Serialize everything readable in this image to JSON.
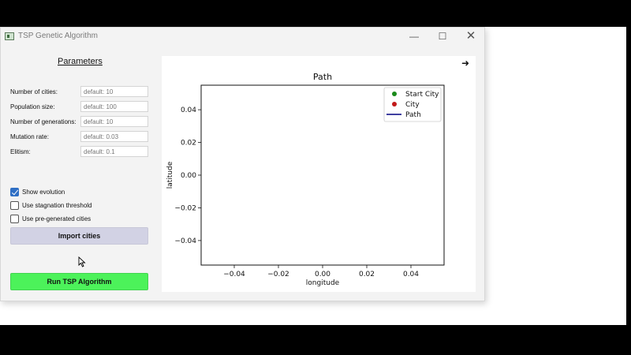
{
  "window": {
    "title": "TSP Genetic Algorithm",
    "controls": {
      "minimize": "—",
      "maximize": "☐",
      "close": "✕"
    }
  },
  "parameters": {
    "heading": "Parameters",
    "fields": [
      {
        "label": "Number of cities:",
        "placeholder": "default: 10",
        "value": ""
      },
      {
        "label": "Population size:",
        "placeholder": "default: 100",
        "value": ""
      },
      {
        "label": "Number of generations:",
        "placeholder": "default: 10",
        "value": ""
      },
      {
        "label": "Mutation rate:",
        "placeholder": "default: 0.03",
        "value": ""
      },
      {
        "label": "Elitism:",
        "placeholder": "default: 0.1",
        "value": ""
      }
    ],
    "options": [
      {
        "label": "Show evolution",
        "checked": true
      },
      {
        "label": "Use stagnation threshold",
        "checked": false
      },
      {
        "label": "Use pre-generated cities",
        "checked": false
      }
    ],
    "import_label": "Import cities",
    "run_label": "Run TSP Algorithm"
  },
  "plot_panel": {
    "arrow_icon": "right-arrow-icon",
    "arrow_glyph": "➜"
  },
  "colors": {
    "start_city": "#1a8a1a",
    "city": "#c21a1a",
    "path": "#000080",
    "run_button": "#4cf25a",
    "import_button": "#d2d2e4",
    "checkbox_checked": "#2f6fc4"
  },
  "chart_data": {
    "type": "scatter",
    "title": "Path",
    "xlabel": "longitude",
    "ylabel": "latitude",
    "xlim": [
      -0.055,
      0.055
    ],
    "ylim": [
      -0.055,
      0.055
    ],
    "xticks": [
      -0.04,
      -0.02,
      0.0,
      0.02,
      0.04
    ],
    "yticks": [
      -0.04,
      -0.02,
      0.0,
      0.02,
      0.04
    ],
    "xtick_labels": [
      "−0.04",
      "−0.02",
      "0.00",
      "0.02",
      "0.04"
    ],
    "ytick_labels": [
      "−0.04",
      "−0.02",
      "0.00",
      "0.02",
      "0.04"
    ],
    "grid": false,
    "legend_position": "top-right",
    "series": [
      {
        "name": "Start City",
        "kind": "marker",
        "color": "#1a8a1a",
        "points": []
      },
      {
        "name": "City",
        "kind": "marker",
        "color": "#c21a1a",
        "points": []
      },
      {
        "name": "Path",
        "kind": "line",
        "color": "#000080",
        "points": []
      }
    ]
  }
}
